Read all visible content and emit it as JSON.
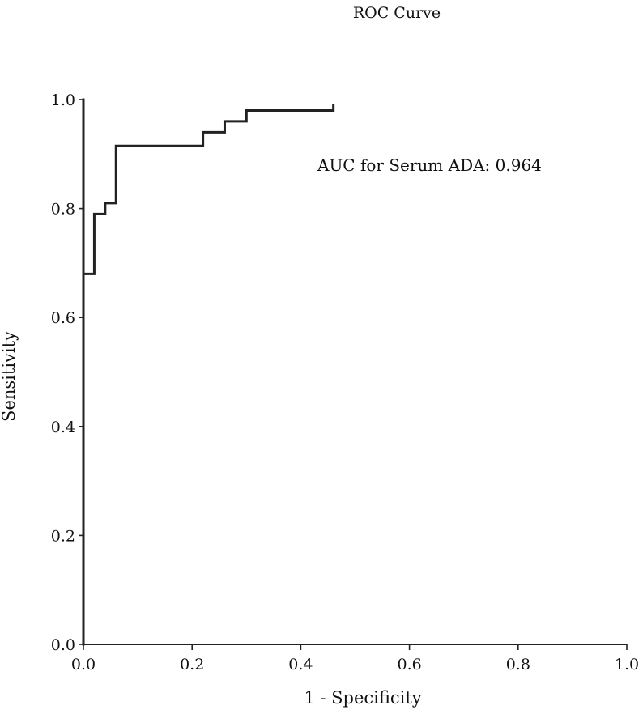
{
  "chart_data": {
    "type": "line",
    "title": "ROC Curve",
    "xlabel": "1 - Specificity",
    "ylabel": "Sensitivity",
    "xlim": [
      0.0,
      1.0
    ],
    "ylim": [
      0.0,
      1.0
    ],
    "x_ticks": [
      "0.0",
      "0.2",
      "0.4",
      "0.6",
      "0.8",
      "1.0"
    ],
    "y_ticks": [
      "0.0",
      "0.2",
      "0.4",
      "0.6",
      "0.8",
      "1.0"
    ],
    "grid": false,
    "annotation": "AUC for Serum ADA: 0.964",
    "series": [
      {
        "x": [
          0.0,
          0.0,
          0.02,
          0.02,
          0.04,
          0.04,
          0.06,
          0.06,
          0.22,
          0.22,
          0.26,
          0.26,
          0.3,
          0.3,
          0.46,
          0.46,
          0.0,
          0.0
        ],
        "y": [
          0.0,
          0.68,
          0.68,
          0.79,
          0.79,
          0.81,
          0.81,
          0.915,
          0.915,
          0.94,
          0.94,
          0.96,
          0.96,
          0.98,
          0.98,
          0.99,
          0.0,
          1.0
        ]
      }
    ],
    "line_color": "#222222"
  }
}
